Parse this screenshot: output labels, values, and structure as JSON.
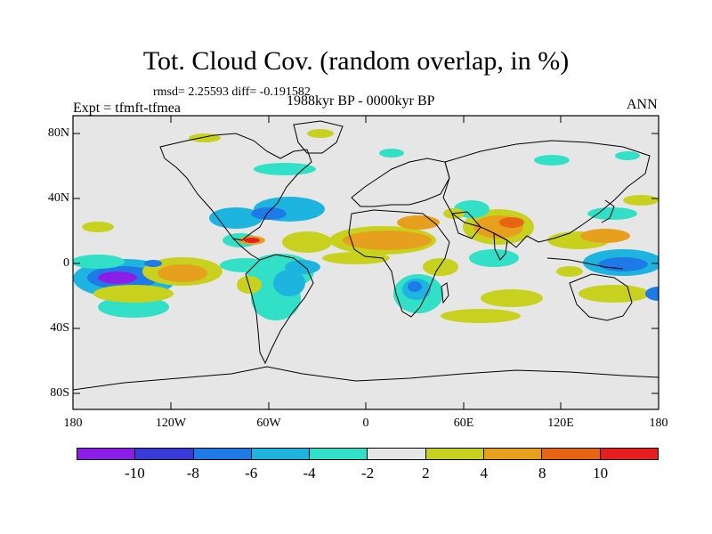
{
  "title": "Tot. Cloud Cov. (random overlap, in %)",
  "stats": "rmsd= 2.25593 diff= -0.191582",
  "experiment": "Expt = tfmft-tfmea",
  "period": "1988kyr BP - 0000kyr BP",
  "season": "ANN",
  "lat_labels": [
    "80N",
    "40N",
    "0",
    "40S",
    "80S"
  ],
  "lon_labels": [
    "180",
    "120W",
    "60W",
    "0",
    "60E",
    "120E",
    "180"
  ],
  "colorbar": {
    "colors": [
      "#8a1ee6",
      "#3a3ad8",
      "#1e7ae6",
      "#1eb4e0",
      "#32e0c8",
      "#e6e6e6",
      "#c8d21e",
      "#e6a01e",
      "#e66414",
      "#e61e1e"
    ],
    "labels": [
      "-10",
      "-8",
      "-6",
      "-4",
      "-2",
      "2",
      "4",
      "8",
      "10"
    ]
  },
  "map": {
    "background_color": "#e6e6e6"
  }
}
